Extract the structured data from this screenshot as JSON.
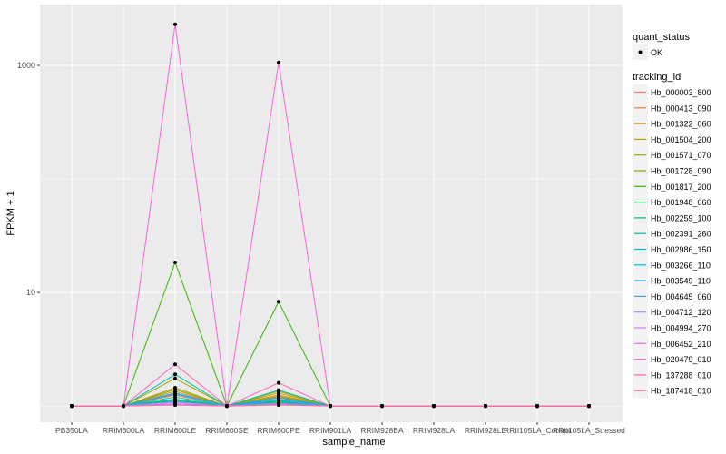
{
  "chart_data": {
    "type": "line",
    "title": "",
    "xlabel": "sample_name",
    "ylabel": "FPKM + 1",
    "y_scale": "log10",
    "ylim": [
      0.72,
      3435
    ],
    "y_ticks": [
      10,
      1000
    ],
    "y_tick_labels": [
      "10",
      "1000"
    ],
    "grid": true,
    "legend_position": "right",
    "categories": [
      "PB350LA",
      "RRIM600LA",
      "RRIM600LE",
      "RRIM600SE",
      "RRIM600PE",
      "RRIM901LA",
      "RRIM928BA",
      "RRIM928LA",
      "RRIM928LE",
      "RRII105LA_Control",
      "RRII105LA_Stressed"
    ],
    "shape_legend": {
      "title": "quant_status",
      "items": [
        "OK"
      ]
    },
    "color_legend_title": "tracking_id",
    "series": [
      {
        "name": "Hb_000003_800",
        "color": "#F8766D",
        "values": [
          1,
          1,
          1.3,
          1,
          1.2,
          1,
          1,
          1,
          1,
          1,
          1
        ]
      },
      {
        "name": "Hb_000413_090",
        "color": "#EA8331",
        "values": [
          1,
          1,
          1.25,
          1,
          1.15,
          1,
          1,
          1,
          1,
          1,
          1
        ]
      },
      {
        "name": "Hb_001322_060",
        "color": "#D89000",
        "values": [
          1,
          1,
          1.35,
          1,
          1.25,
          1,
          1,
          1,
          1,
          1,
          1
        ]
      },
      {
        "name": "Hb_001504_200",
        "color": "#C09B00",
        "values": [
          1,
          1,
          1.45,
          1,
          1.3,
          1,
          1,
          1,
          1,
          1,
          1
        ]
      },
      {
        "name": "Hb_001571_070",
        "color": "#A3A500",
        "values": [
          1,
          1,
          1.75,
          1,
          1.35,
          1,
          1,
          1,
          1,
          1,
          1
        ]
      },
      {
        "name": "Hb_001728_090",
        "color": "#7CAE00",
        "values": [
          1,
          1,
          1.4,
          1,
          1.22,
          1,
          1,
          1,
          1,
          1,
          1
        ]
      },
      {
        "name": "Hb_001817_200",
        "color": "#39B600",
        "values": [
          1,
          1,
          18.4,
          1,
          8.3,
          1,
          1,
          1,
          1,
          1,
          1
        ]
      },
      {
        "name": "Hb_001948_060",
        "color": "#00BB4E",
        "values": [
          1,
          1,
          1.15,
          1,
          1.1,
          1,
          1,
          1,
          1,
          1,
          1
        ]
      },
      {
        "name": "Hb_002259_100",
        "color": "#00BF7D",
        "values": [
          1,
          1,
          1.12,
          1,
          1.08,
          1,
          1,
          1,
          1,
          1,
          1
        ]
      },
      {
        "name": "Hb_002391_260",
        "color": "#00C1A3",
        "values": [
          1,
          1,
          1.9,
          1,
          1.38,
          1,
          1,
          1,
          1,
          1,
          1
        ]
      },
      {
        "name": "Hb_002986_150",
        "color": "#00BFC4",
        "values": [
          1,
          1,
          1.2,
          1,
          1.12,
          1,
          1,
          1,
          1,
          1,
          1
        ]
      },
      {
        "name": "Hb_003266_110",
        "color": "#00BAE0",
        "values": [
          1,
          1,
          1.1,
          1,
          1.06,
          1,
          1,
          1,
          1,
          1,
          1
        ]
      },
      {
        "name": "Hb_003549_110",
        "color": "#00B0F6",
        "values": [
          1,
          1,
          1.3,
          1,
          1.18,
          1,
          1,
          1,
          1,
          1,
          1
        ]
      },
      {
        "name": "Hb_004645_060",
        "color": "#35A2FF",
        "values": [
          1,
          1,
          1.28,
          1,
          1.14,
          1,
          1,
          1,
          1,
          1,
          1
        ]
      },
      {
        "name": "Hb_004712_120",
        "color": "#9590FF",
        "values": [
          1,
          1,
          1.05,
          1,
          1.04,
          1,
          1,
          1,
          1,
          1,
          1
        ]
      },
      {
        "name": "Hb_004994_270",
        "color": "#C77CFF",
        "values": [
          1,
          1,
          1.08,
          1,
          1.05,
          1,
          1,
          1,
          1,
          1,
          1
        ]
      },
      {
        "name": "Hb_006452_210",
        "color": "#E76BF3",
        "values": [
          1,
          1,
          1.04,
          1,
          1.03,
          1,
          1,
          1,
          1,
          1,
          1
        ]
      },
      {
        "name": "Hb_020479_010",
        "color": "#FA62DB",
        "values": [
          1,
          1,
          2300,
          1,
          1060,
          1,
          1,
          1,
          1,
          1,
          1
        ]
      },
      {
        "name": "Hb_137288_010",
        "color": "#FF62BC",
        "values": [
          1,
          1,
          2.33,
          1,
          1.6,
          1,
          1,
          1,
          1,
          1,
          1
        ]
      },
      {
        "name": "Hb_187418_010",
        "color": "#FF6C91",
        "values": [
          1,
          1,
          1.02,
          1,
          1.02,
          1,
          1,
          1,
          1,
          1,
          1
        ]
      }
    ]
  }
}
